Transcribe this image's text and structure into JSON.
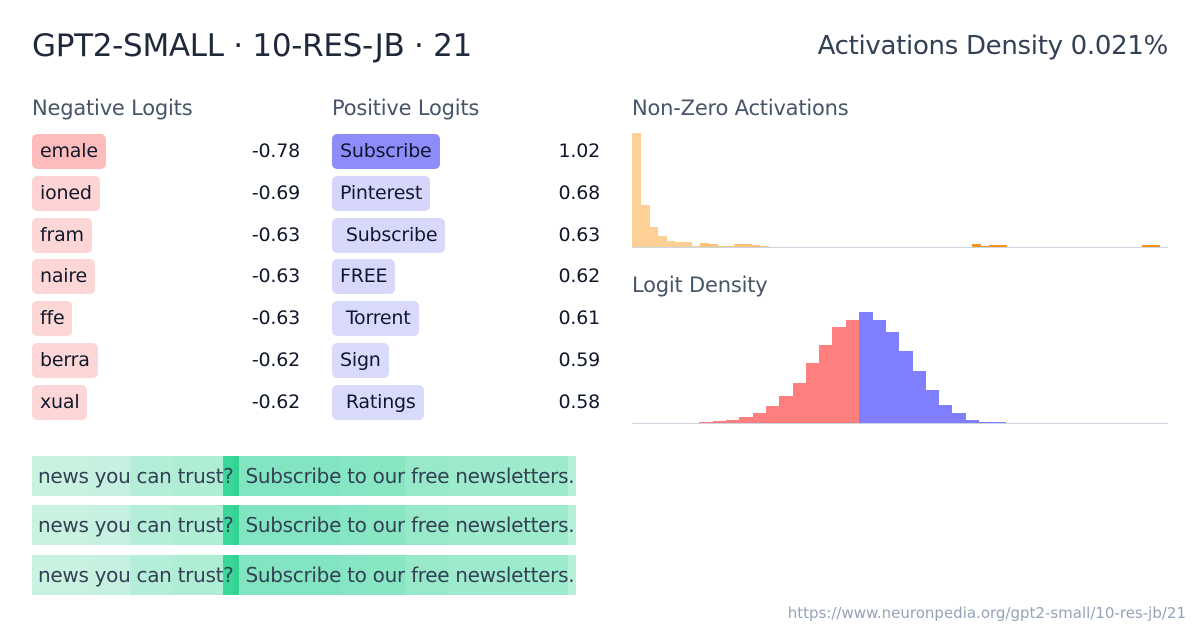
{
  "header": {
    "title": "GPT2-SMALL · 10-RES-JB · 21",
    "density_label": "Activations Density 0.021%"
  },
  "negative_logits": {
    "heading": "Negative Logits",
    "items": [
      {
        "token": "emale",
        "value": "-0.78",
        "color": "#fdbcbc"
      },
      {
        "token": "ioned",
        "value": "-0.69",
        "color": "#fdd3d3"
      },
      {
        "token": "fram",
        "value": "-0.63",
        "color": "#fdd6d6"
      },
      {
        "token": "naire",
        "value": "-0.63",
        "color": "#fdd6d6"
      },
      {
        "token": "ffe",
        "value": "-0.63",
        "color": "#fdd6d6"
      },
      {
        "token": "berra",
        "value": "-0.62",
        "color": "#fdd7d7"
      },
      {
        "token": "xual",
        "value": "-0.62",
        "color": "#fdd7d7"
      }
    ]
  },
  "positive_logits": {
    "heading": "Positive Logits",
    "items": [
      {
        "token": "Subscribe",
        "value": "1.02",
        "color": "#8c8cfb"
      },
      {
        "token": "Pinterest",
        "value": "0.68",
        "color": "#d6d6fd"
      },
      {
        "token": " Subscribe",
        "value": "0.63",
        "color": "#d8d8fd"
      },
      {
        "token": "FREE",
        "value": "0.62",
        "color": "#d8d8fd"
      },
      {
        "token": " Torrent",
        "value": "0.61",
        "color": "#d9d9fd"
      },
      {
        "token": "Sign",
        "value": "0.59",
        "color": "#dadafd"
      },
      {
        "token": " Ratings",
        "value": "0.58",
        "color": "#dadafd"
      }
    ]
  },
  "activations_chart": {
    "heading": "Non-Zero Activations"
  },
  "logit_chart": {
    "heading": "Logit Density"
  },
  "chart_data": [
    {
      "type": "bar",
      "title": "Non-Zero Activations",
      "xlabel": "",
      "ylabel": "",
      "grid": false,
      "color_light": "#fdd095",
      "color_dark": "#f7931e",
      "values": [
        112,
        41,
        20,
        11,
        6,
        5,
        5,
        1,
        4,
        3,
        1,
        1,
        3,
        3,
        2,
        1,
        0,
        0,
        0,
        0,
        0,
        0,
        0,
        0,
        0,
        0,
        0,
        0,
        0,
        0,
        0,
        0,
        0,
        0,
        0,
        0,
        0,
        0,
        0,
        0,
        3,
        1,
        2,
        2,
        0,
        0,
        0,
        0,
        0,
        0,
        0,
        0,
        0,
        0,
        0,
        0,
        0,
        0,
        0,
        0,
        2,
        2,
        0
      ]
    },
    {
      "type": "bar",
      "title": "Logit Density",
      "xlabel": "",
      "ylabel": "",
      "grid": false,
      "negative_color": "#ff7f7f",
      "positive_color": "#7f7fff",
      "negative_values": [
        1,
        2,
        3,
        6,
        10,
        18,
        28,
        42,
        63,
        82,
        100,
        108
      ],
      "positive_values": [
        116,
        108,
        95,
        75,
        54,
        35,
        19,
        10,
        3,
        1,
        0.5
      ]
    }
  ],
  "activation_examples": [
    {
      "tokens": [
        {
          "text": "news",
          "color": "#c9f2e1"
        },
        {
          "text": " you",
          "color": "#c6f1e0"
        },
        {
          "text": " can",
          "color": "#b5eed8"
        },
        {
          "text": " trust",
          "color": "#b0edd5"
        },
        {
          "text": "?",
          "color": "#3bd69a"
        },
        {
          "text": " ",
          "color": "#33d393"
        },
        {
          "text": " Subscribe",
          "color": "#82e4c0"
        },
        {
          "text": " to",
          "color": "#86e5c2"
        },
        {
          "text": " our",
          "color": "#88e6c3"
        },
        {
          "text": " free",
          "color": "#98e9ca"
        },
        {
          "text": " newsletters",
          "color": "#9deacc"
        },
        {
          "text": ".",
          "color": "#b8efd9"
        }
      ]
    },
    {
      "tokens": [
        {
          "text": "news",
          "color": "#c9f2e1"
        },
        {
          "text": " you",
          "color": "#c6f1e0"
        },
        {
          "text": " can",
          "color": "#b5eed8"
        },
        {
          "text": " trust",
          "color": "#b0edd5"
        },
        {
          "text": "?",
          "color": "#3bd69a"
        },
        {
          "text": " ",
          "color": "#33d393"
        },
        {
          "text": " Subscribe",
          "color": "#82e4c0"
        },
        {
          "text": " to",
          "color": "#86e5c2"
        },
        {
          "text": " our",
          "color": "#88e6c3"
        },
        {
          "text": " free",
          "color": "#98e9ca"
        },
        {
          "text": " newsletters",
          "color": "#9deacc"
        },
        {
          "text": ".",
          "color": "#b8efd9"
        }
      ]
    },
    {
      "tokens": [
        {
          "text": "news",
          "color": "#c9f2e1"
        },
        {
          "text": " you",
          "color": "#c6f1e0"
        },
        {
          "text": " can",
          "color": "#b5eed8"
        },
        {
          "text": " trust",
          "color": "#b0edd5"
        },
        {
          "text": "?",
          "color": "#3bd69a"
        },
        {
          "text": " ",
          "color": "#33d393"
        },
        {
          "text": " Subscribe",
          "color": "#82e4c0"
        },
        {
          "text": " to",
          "color": "#86e5c2"
        },
        {
          "text": " our",
          "color": "#88e6c3"
        },
        {
          "text": " free",
          "color": "#98e9ca"
        },
        {
          "text": " newsletters",
          "color": "#9deacc"
        },
        {
          "text": ".",
          "color": "#b8efd9"
        }
      ]
    }
  ],
  "footer": {
    "url": "https://www.neuronpedia.org/gpt2-small/10-res-jb/21"
  }
}
